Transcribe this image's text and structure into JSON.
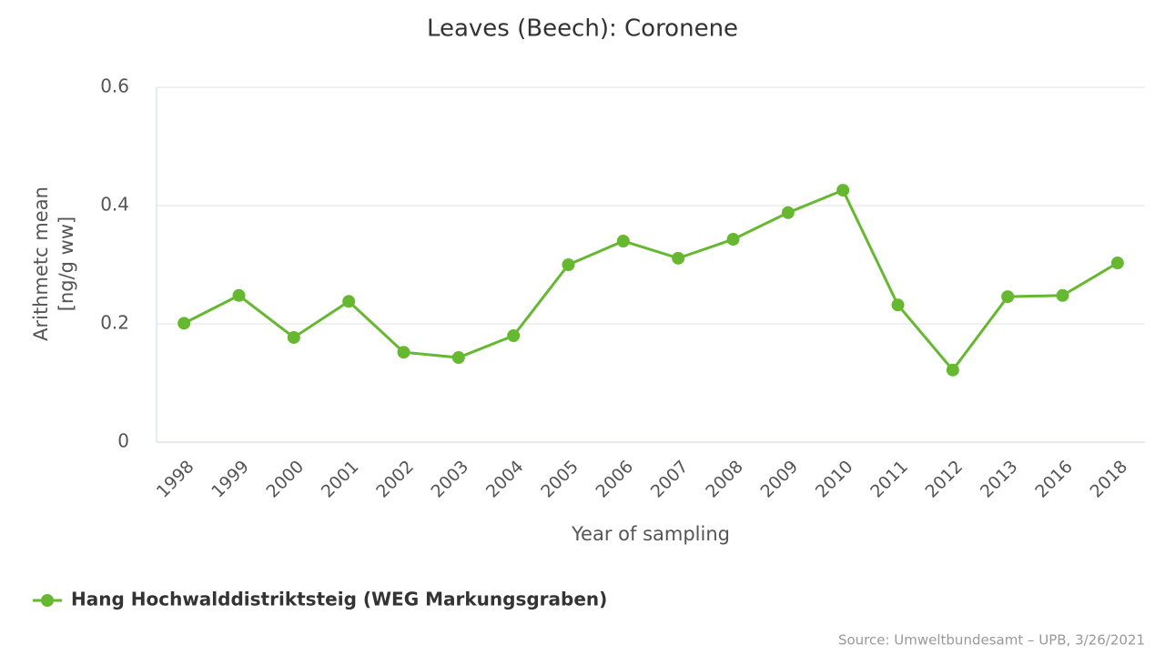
{
  "chart_data": {
    "type": "line",
    "title": "Leaves (Beech): Coronene",
    "x_label": "Year of sampling",
    "y_label": [
      "Arithmetc mean",
      "[ng/g ww]"
    ],
    "categories": [
      "1998",
      "1999",
      "2000",
      "2001",
      "2002",
      "2003",
      "2004",
      "2005",
      "2006",
      "2007",
      "2008",
      "2009",
      "2010",
      "2011",
      "2012",
      "2013",
      "2016",
      "2018"
    ],
    "series": [
      {
        "name": "Hang Hochwalddistriktsteig (WEG Markungsgraben)",
        "color": "#66b831",
        "values": [
          0.201,
          0.248,
          0.177,
          0.238,
          0.152,
          0.143,
          0.18,
          0.3,
          0.34,
          0.311,
          0.343,
          0.388,
          0.426,
          0.232,
          0.122,
          0.246,
          0.248,
          0.303
        ]
      }
    ],
    "ylim": [
      0,
      0.6
    ],
    "yticks": [
      0,
      0.2,
      0.4,
      0.6
    ],
    "grid": true,
    "source": "Source: Umweltbundesamt – UPB, 3/26/2021"
  }
}
